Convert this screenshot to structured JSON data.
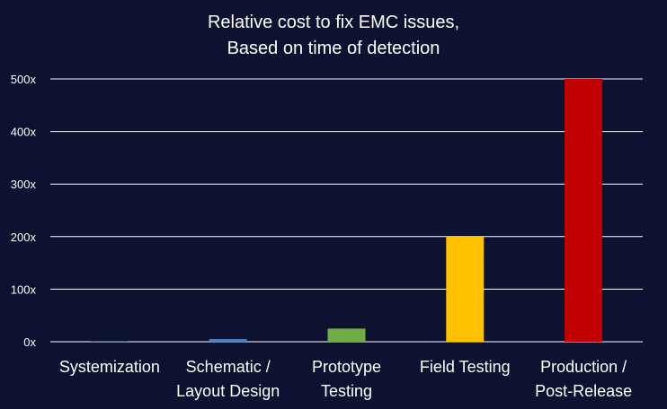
{
  "chart_data": {
    "type": "bar",
    "title_lines": [
      "Relative cost to fix EMC issues,",
      "Based on time of detection"
    ],
    "categories": [
      [
        "Systemization"
      ],
      [
        "Schematic /",
        "Layout Design"
      ],
      [
        "Prototype",
        "Testing"
      ],
      [
        "Field Testing"
      ],
      [
        "Production /",
        "Post-Release"
      ]
    ],
    "values": [
      0.5,
      5,
      25,
      200,
      500
    ],
    "bar_colors": [
      "#4472c4",
      "#4f81bd",
      "#70ad47",
      "#ffc000",
      "#c00000"
    ],
    "ylim": [
      0,
      500
    ],
    "yticks": [
      0,
      100,
      200,
      300,
      400,
      500
    ],
    "ytick_labels": [
      "0x",
      "100x",
      "200x",
      "300x",
      "400x",
      "500x"
    ],
    "grid": true,
    "xlabel": "",
    "ylabel": ""
  },
  "colors": {
    "background": "#0c1230",
    "text": "#ffffff",
    "gridline": "#ffffff"
  }
}
